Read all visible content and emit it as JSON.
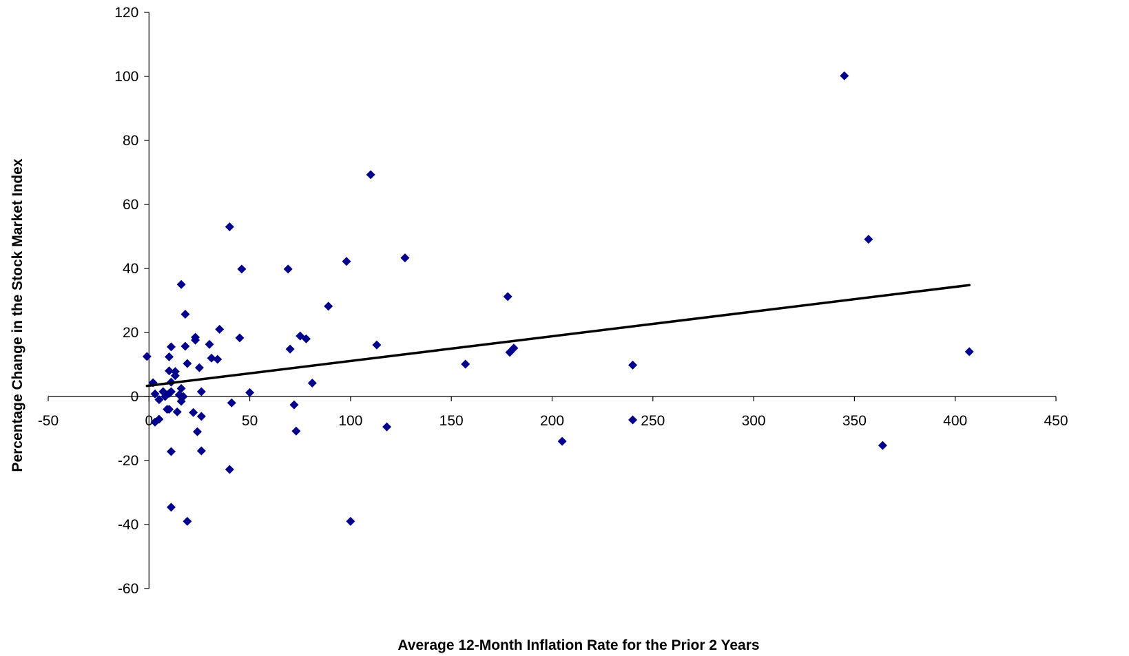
{
  "chart_data": {
    "type": "scatter",
    "title": "",
    "xlabel": "Average 12-Month Inflation Rate for the Prior 2 Years",
    "ylabel": "Percentage Change in the Stock Market Index",
    "xlim": [
      -50,
      450
    ],
    "ylim": [
      -60,
      120
    ],
    "x_ticks": [
      -50,
      0,
      50,
      100,
      150,
      200,
      250,
      300,
      350,
      400,
      450
    ],
    "y_ticks": [
      -60,
      -40,
      -20,
      0,
      20,
      40,
      60,
      80,
      100,
      120
    ],
    "grid": false,
    "legend": "none",
    "marker": "diamond",
    "marker_color": "#00008B",
    "trendline_color": "#000000",
    "series": [
      {
        "points": [
          [
            -1,
            12.5
          ],
          [
            2,
            4.3
          ],
          [
            3,
            -8.0
          ],
          [
            3,
            0.8
          ],
          [
            5,
            -1.0
          ],
          [
            5,
            -7.1
          ],
          [
            7,
            1.5
          ],
          [
            8,
            0.0
          ],
          [
            9,
            -4.0
          ],
          [
            10,
            1.0
          ],
          [
            10,
            8.0
          ],
          [
            10,
            12.4
          ],
          [
            10,
            -4.0
          ],
          [
            11,
            1.5
          ],
          [
            11,
            4.5
          ],
          [
            11,
            -17.2
          ],
          [
            11,
            -34.6
          ],
          [
            11,
            15.5
          ],
          [
            13,
            7.8
          ],
          [
            13,
            6.5
          ],
          [
            14,
            -4.8
          ],
          [
            15,
            0.5
          ],
          [
            16,
            35.0
          ],
          [
            16,
            2.5
          ],
          [
            16,
            -1.5
          ],
          [
            17,
            0.0
          ],
          [
            18,
            15.7
          ],
          [
            18,
            25.7
          ],
          [
            19,
            -39.0
          ],
          [
            19,
            10.3
          ],
          [
            22,
            -5.0
          ],
          [
            23,
            17.6
          ],
          [
            23,
            18.5
          ],
          [
            24,
            -11.0
          ],
          [
            25,
            9.0
          ],
          [
            26,
            1.5
          ],
          [
            26,
            -6.2
          ],
          [
            26,
            -17.0
          ],
          [
            30,
            16.3
          ],
          [
            31,
            12.0
          ],
          [
            34,
            11.6
          ],
          [
            35,
            21.0
          ],
          [
            40,
            53.0
          ],
          [
            40,
            -22.8
          ],
          [
            41,
            -2.0
          ],
          [
            45,
            18.3
          ],
          [
            46,
            39.8
          ],
          [
            50,
            1.2
          ],
          [
            69,
            39.8
          ],
          [
            70,
            14.8
          ],
          [
            72,
            -2.6
          ],
          [
            73,
            -10.8
          ],
          [
            75,
            18.9
          ],
          [
            78,
            18.0
          ],
          [
            81,
            4.2
          ],
          [
            89,
            28.2
          ],
          [
            98,
            42.2
          ],
          [
            100,
            -39.0
          ],
          [
            110,
            69.3
          ],
          [
            113,
            16.1
          ],
          [
            118,
            -9.5
          ],
          [
            127,
            43.3
          ],
          [
            157,
            10.1
          ],
          [
            178,
            31.2
          ],
          [
            179,
            13.8
          ],
          [
            181,
            15.1
          ],
          [
            205,
            -14.0
          ],
          [
            240,
            9.8
          ],
          [
            240,
            -7.3
          ],
          [
            345,
            100.2
          ],
          [
            357,
            49.1
          ],
          [
            364,
            -15.3
          ],
          [
            407,
            14.0
          ]
        ]
      }
    ],
    "trendline": {
      "x": [
        -1,
        407
      ],
      "y": [
        3.3,
        34.8
      ]
    }
  }
}
